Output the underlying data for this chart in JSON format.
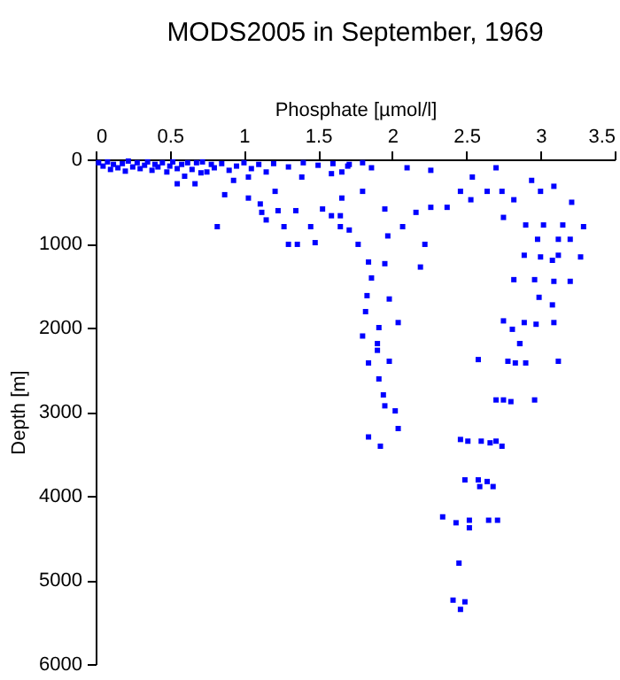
{
  "chart_data": {
    "type": "scatter",
    "title": "MODS2005 in September, 1969",
    "xlabel": "Phosphate [µmol/l]",
    "ylabel": "Depth [m]",
    "x": [
      0.02,
      0.05,
      0.08,
      0.1,
      0.12,
      0.15,
      0.18,
      0.2,
      0.22,
      0.25,
      0.28,
      0.3,
      0.33,
      0.35,
      0.38,
      0.4,
      0.42,
      0.45,
      0.48,
      0.5,
      0.52,
      0.55,
      0.58,
      0.6,
      0.62,
      0.65,
      0.68,
      0.71,
      0.72,
      0.75,
      0.78,
      0.8,
      0.85,
      0.9,
      0.95,
      1.0,
      1.05,
      1.1,
      1.2,
      1.3,
      1.4,
      1.5,
      1.6,
      1.7,
      1.8,
      0.55,
      0.67,
      0.82,
      0.87,
      0.93,
      1.03,
      1.03,
      1.11,
      1.12,
      1.15,
      1.21,
      1.23,
      1.27,
      1.3,
      1.36,
      1.35,
      1.45,
      1.48,
      1.53,
      1.59,
      1.65,
      1.15,
      1.39,
      1.59,
      1.66,
      1.71,
      1.86,
      2.1,
      2.26,
      2.54,
      2.7,
      1.66,
      1.8,
      1.95,
      2.16,
      2.26,
      2.37,
      2.46,
      2.53,
      2.64,
      2.74,
      2.82,
      2.94,
      3.0,
      3.09,
      3.21,
      1.65,
      1.71,
      1.77,
      1.84,
      1.86,
      1.83,
      1.82,
      1.91,
      2.07,
      1.97,
      2.22,
      2.19,
      1.95,
      1.98,
      2.04,
      2.75,
      2.9,
      3.02,
      3.15,
      3.29,
      2.98,
      3.12,
      3.2,
      2.89,
      3.0,
      3.08,
      3.12,
      3.27,
      2.82,
      2.96,
      3.09,
      3.2,
      2.99,
      3.08,
      2.75,
      2.89,
      2.97,
      3.09,
      2.81,
      2.86,
      1.8,
      1.9,
      1.9,
      1.84,
      1.98,
      1.91,
      1.94,
      1.95,
      2.02,
      2.04,
      1.84,
      1.92,
      2.46,
      2.51,
      2.6,
      2.66,
      2.7,
      2.74,
      2.49,
      2.58,
      2.59,
      2.64,
      2.68,
      2.34,
      2.43,
      2.52,
      2.52,
      2.65,
      2.71,
      2.45,
      2.41,
      2.49,
      2.46,
      2.58,
      2.78,
      2.83,
      2.9,
      3.12,
      2.86,
      2.7,
      2.75,
      2.8,
      2.96
    ],
    "values": [
      40,
      80,
      30,
      120,
      60,
      100,
      50,
      140,
      20,
      90,
      40,
      110,
      70,
      30,
      130,
      60,
      90,
      40,
      150,
      80,
      30,
      110,
      60,
      200,
      40,
      120,
      40,
      160,
      30,
      150,
      60,
      100,
      50,
      130,
      80,
      40,
      110,
      60,
      50,
      90,
      40,
      70,
      50,
      80,
      40,
      290,
      290,
      800,
      420,
      250,
      460,
      210,
      530,
      630,
      720,
      380,
      610,
      800,
      1010,
      1010,
      610,
      800,
      990,
      590,
      670,
      800,
      150,
      210,
      170,
      150,
      60,
      100,
      100,
      130,
      210,
      100,
      460,
      380,
      590,
      630,
      570,
      570,
      380,
      480,
      380,
      380,
      480,
      250,
      380,
      320,
      510,
      670,
      840,
      1010,
      1220,
      1410,
      1620,
      1810,
      2000,
      800,
      910,
      1010,
      1280,
      1240,
      1660,
      1940,
      690,
      780,
      780,
      780,
      800,
      950,
      950,
      950,
      1140,
      1160,
      1200,
      1140,
      1160,
      1430,
      1430,
      1450,
      1450,
      1640,
      1730,
      1920,
      1940,
      1960,
      1940,
      2020,
      2190,
      2100,
      2190,
      2270,
      2420,
      2400,
      2610,
      2800,
      2930,
      2990,
      3200,
      3300,
      3410,
      3330,
      3350,
      3350,
      3370,
      3350,
      3410,
      3810,
      3810,
      3890,
      3830,
      3890,
      4250,
      4320,
      4290,
      4380,
      4290,
      4290,
      4800,
      5240,
      5260,
      5350,
      2380,
      2400,
      2420,
      2420,
      2400,
      2190,
      2860,
      2860,
      2880,
      2860
    ],
    "color": "#0000ff",
    "marker": "square",
    "xlim": [
      0,
      3.5
    ],
    "xticks": [
      0,
      0.5,
      1,
      1.5,
      2,
      2.5,
      3,
      3.5
    ],
    "ylim": [
      6000,
      0
    ],
    "yticks": [
      0,
      1000,
      2000,
      3000,
      4000,
      5000,
      6000
    ]
  }
}
